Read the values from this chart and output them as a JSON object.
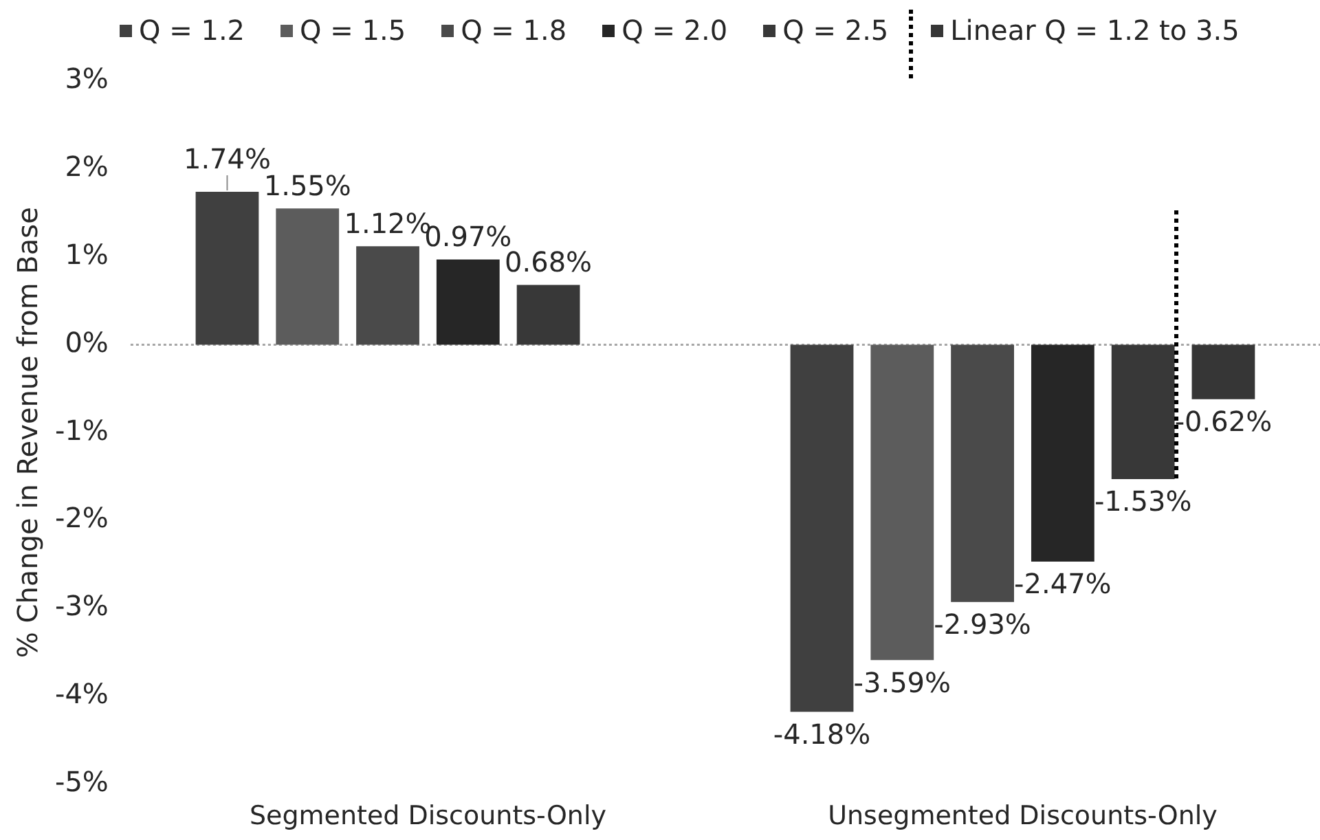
{
  "chart_data": {
    "type": "bar",
    "ylabel": "% Change in Revenue from Base",
    "categories": [
      "Segmented Discounts-Only",
      "Unsegmented Discounts-Only"
    ],
    "series": [
      {
        "name": "Q = 1.2",
        "color": "#404040",
        "values": [
          1.74,
          -4.18
        ],
        "value_labels": [
          "1.74%",
          "-4.18%"
        ]
      },
      {
        "name": "Q = 1.5",
        "color": "#5c5c5c",
        "values": [
          1.55,
          -3.59
        ],
        "value_labels": [
          "1.55%",
          "-3.59%"
        ]
      },
      {
        "name": "Q = 1.8",
        "color": "#4a4a4a",
        "values": [
          1.12,
          -2.93
        ],
        "value_labels": [
          "1.12%",
          "-2.93%"
        ]
      },
      {
        "name": "Q = 2.0",
        "color": "#262626",
        "values": [
          0.97,
          -2.47
        ],
        "value_labels": [
          "0.97%",
          "-2.47%"
        ]
      },
      {
        "name": "Q = 2.5",
        "color": "#383838",
        "values": [
          0.68,
          -1.53
        ],
        "value_labels": [
          "0.68%",
          "-1.53%"
        ]
      },
      {
        "name": "Linear Q = 1.2 to 3.5",
        "color": "#363636",
        "values": [
          null,
          -0.62
        ],
        "value_labels": [
          null,
          "-0.62%"
        ]
      }
    ],
    "ylim": [
      -5,
      3
    ],
    "yticks": [
      {
        "value": -5,
        "label": "-5%"
      },
      {
        "value": -4,
        "label": "-4%"
      },
      {
        "value": -3,
        "label": "-3%"
      },
      {
        "value": -2,
        "label": "-2%"
      },
      {
        "value": -1,
        "label": "-1%"
      },
      {
        "value": 0,
        "label": "0%"
      },
      {
        "value": 1,
        "label": "1%"
      },
      {
        "value": 2,
        "label": "2%"
      },
      {
        "value": 3,
        "label": "3%"
      }
    ],
    "ref_lines": [
      {
        "axis": "y",
        "value": 0,
        "color": "#a6a6a6",
        "line_style": "dotted"
      }
    ],
    "legend": "top"
  }
}
